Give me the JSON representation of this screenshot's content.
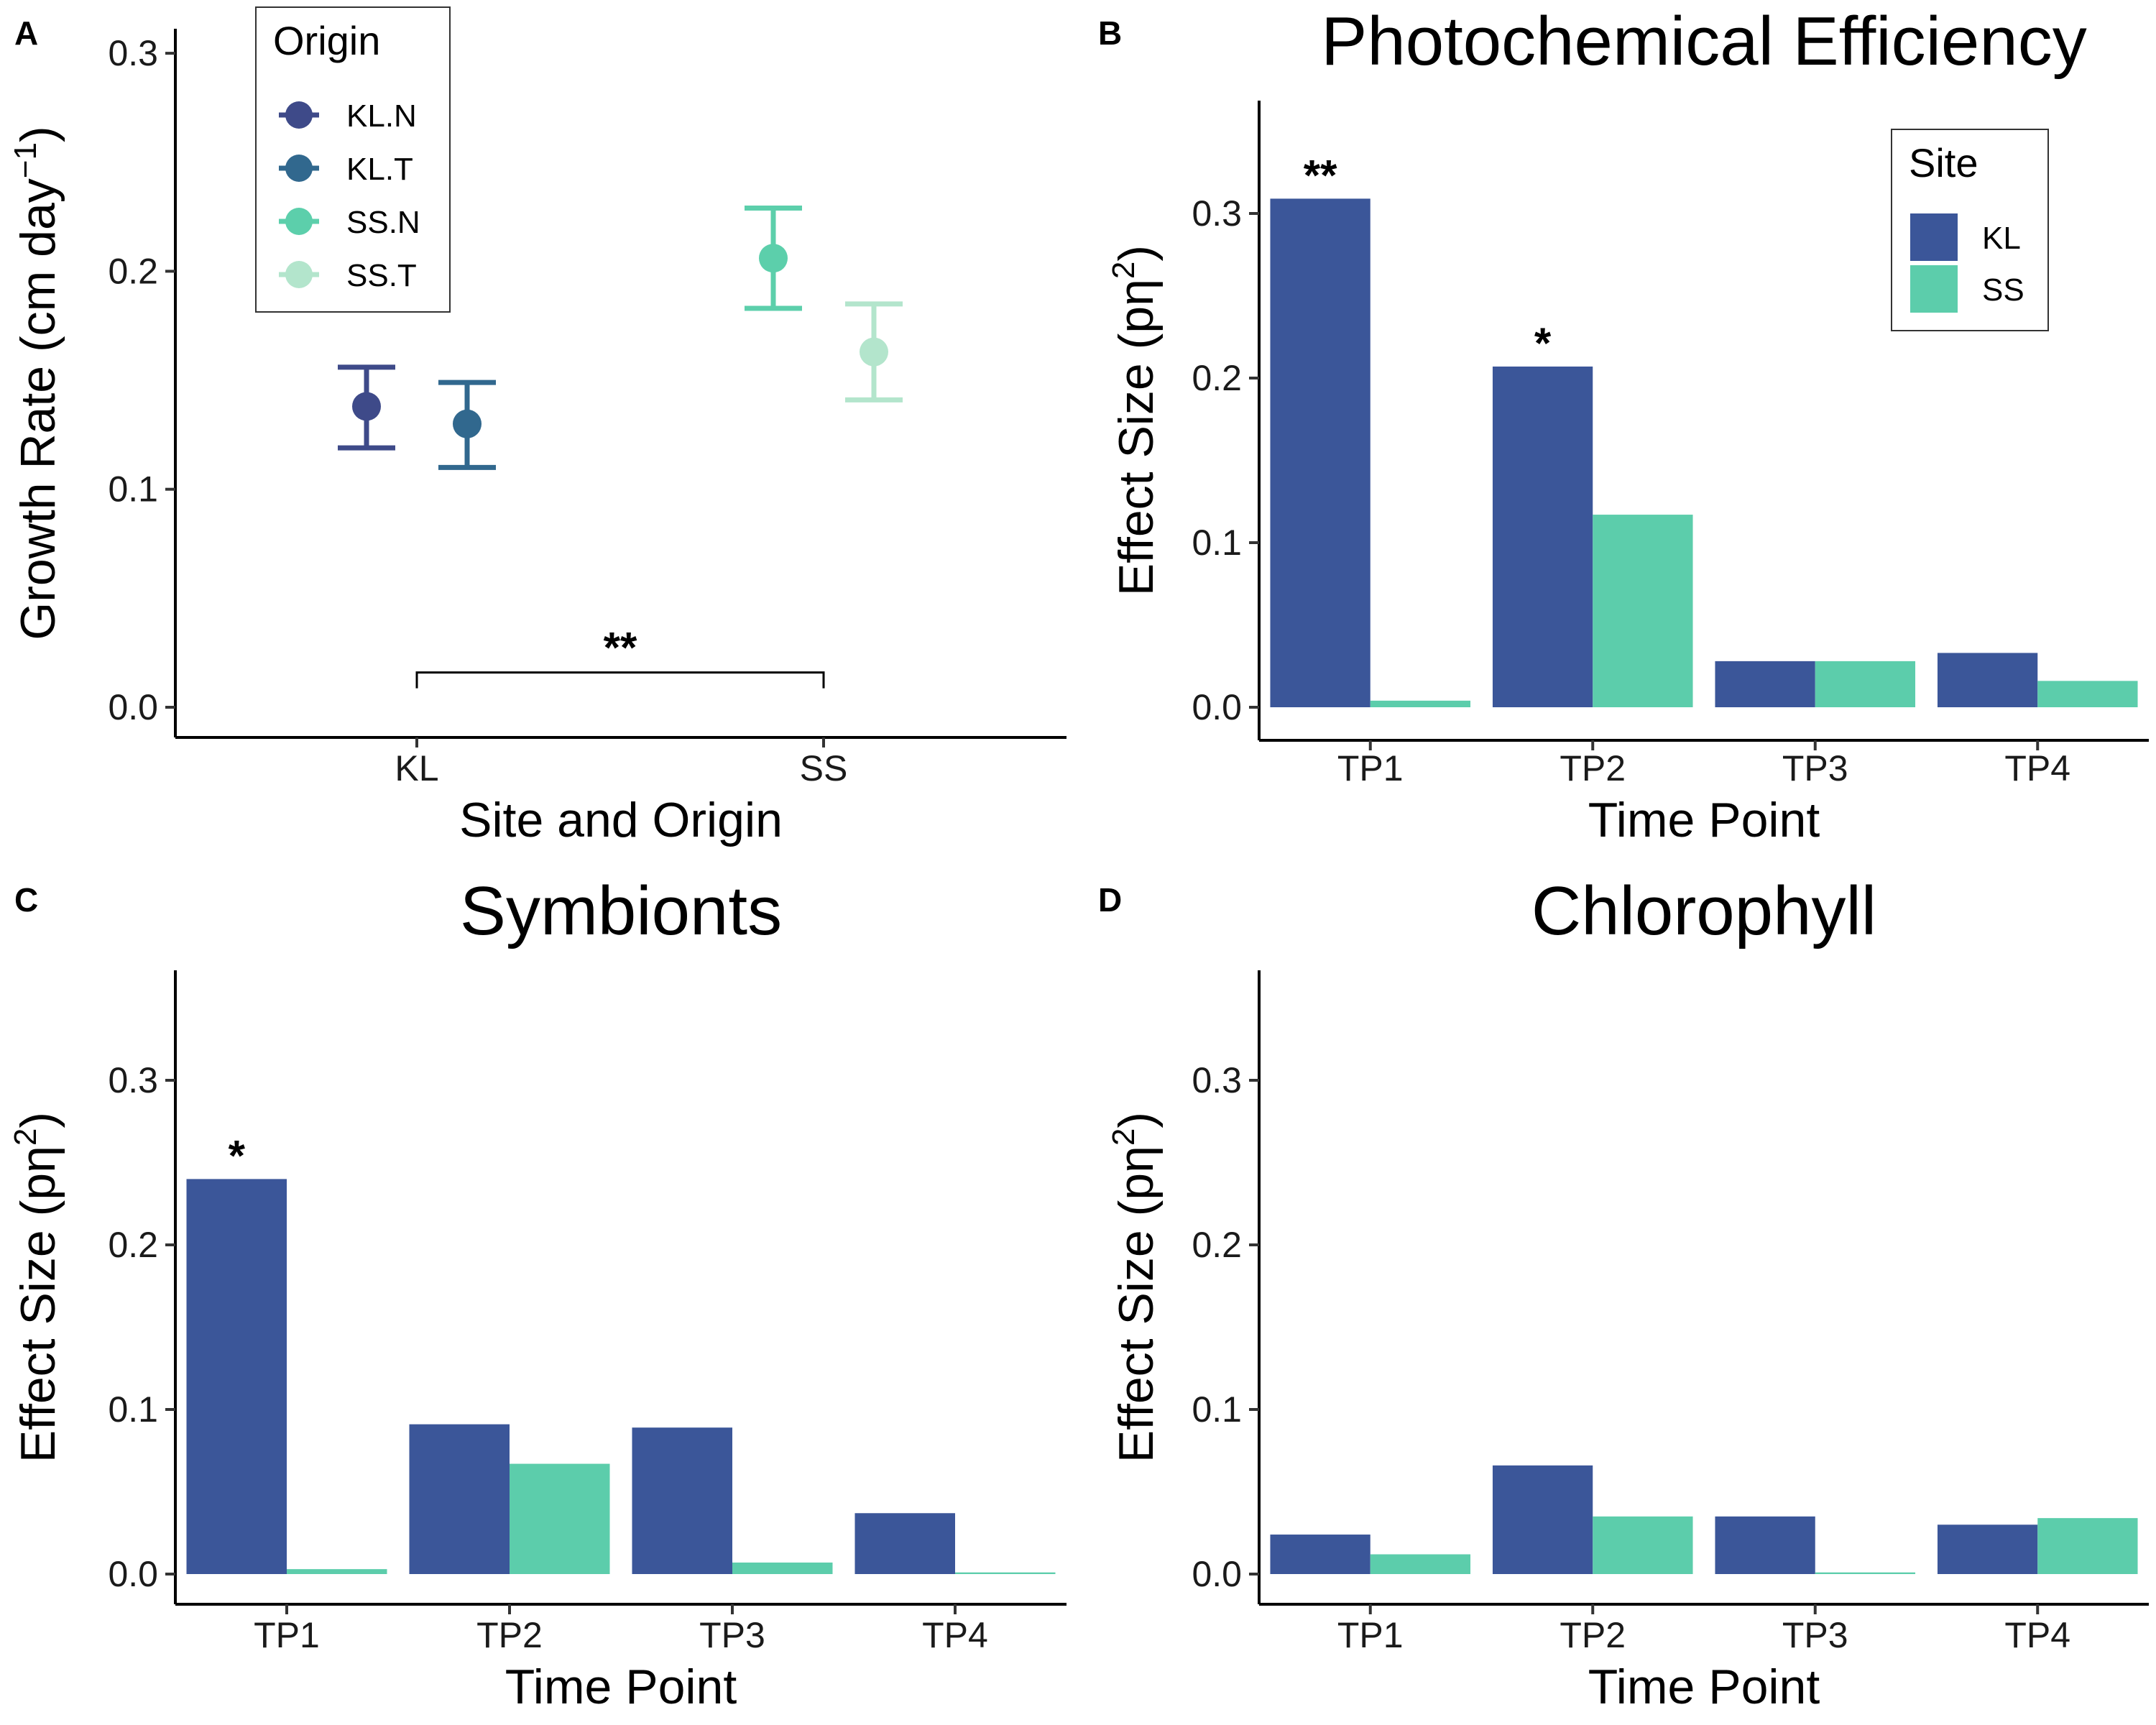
{
  "chart_data": [
    {
      "panel": "A",
      "type": "scatter",
      "title": "",
      "xlabel": "Site and Origin",
      "ylabel": "Growth Rate (cm day",
      "ylabel_sup": "−1",
      "ylabel_close": ")",
      "categories": [
        "KL",
        "SS"
      ],
      "ylim": [
        0,
        0.3
      ],
      "yticks": [
        "0.0",
        "0.1",
        "0.2",
        "0.3"
      ],
      "grid": false,
      "legend": {
        "title": "Origin",
        "position": "top-left"
      },
      "series": [
        {
          "name": "KL.N",
          "category": "KL",
          "mean": 0.138,
          "lower": 0.119,
          "upper": 0.156,
          "color": "#3e4a89"
        },
        {
          "name": "KL.T",
          "category": "KL",
          "mean": 0.13,
          "lower": 0.11,
          "upper": 0.149,
          "color": "#31688e"
        },
        {
          "name": "SS.N",
          "category": "SS",
          "mean": 0.206,
          "lower": 0.183,
          "upper": 0.229,
          "color": "#5ccfab"
        },
        {
          "name": "SS.T",
          "category": "SS",
          "mean": 0.163,
          "lower": 0.141,
          "upper": 0.185,
          "color": "#b3e5cc"
        }
      ],
      "annotations": [
        {
          "text": "**",
          "from": "KL",
          "to": "SS",
          "y": 0.01
        }
      ]
    },
    {
      "panel": "B",
      "type": "bar",
      "title": "Photochemical Efficiency",
      "xlabel": "Time Point",
      "ylabel": "Effect Size (pη",
      "ylabel_sup": "2",
      "ylabel_close": ")",
      "categories": [
        "TP1",
        "TP2",
        "TP3",
        "TP4"
      ],
      "ylim": [
        0,
        0.36
      ],
      "yticks": [
        "0.0",
        "0.1",
        "0.2",
        "0.3"
      ],
      "grid": false,
      "legend": {
        "title": "Site",
        "position": "top-right"
      },
      "series": [
        {
          "name": "KL",
          "color": "#3b5699",
          "values": [
            0.309,
            0.207,
            0.028,
            0.033
          ]
        },
        {
          "name": "SS",
          "color": "#5ccdab",
          "values": [
            0.004,
            0.117,
            0.028,
            0.016
          ]
        }
      ],
      "annotations": [
        {
          "text": "**",
          "category": "TP1",
          "series": "KL"
        },
        {
          "text": "*",
          "category": "TP2",
          "series": "KL"
        }
      ]
    },
    {
      "panel": "C",
      "type": "bar",
      "title": "Symbionts",
      "xlabel": "Time Point",
      "ylabel": "Effect Size (pη",
      "ylabel_sup": "2",
      "ylabel_close": ")",
      "categories": [
        "TP1",
        "TP2",
        "TP3",
        "TP4"
      ],
      "ylim": [
        0,
        0.36
      ],
      "yticks": [
        "0.0",
        "0.1",
        "0.2",
        "0.3"
      ],
      "grid": false,
      "series": [
        {
          "name": "KL",
          "color": "#3b5699",
          "values": [
            0.24,
            0.091,
            0.089,
            0.037
          ]
        },
        {
          "name": "SS",
          "color": "#5ccdab",
          "values": [
            0.003,
            0.067,
            0.007,
            0.001
          ]
        }
      ],
      "annotations": [
        {
          "text": "*",
          "category": "TP1",
          "series": "KL"
        }
      ]
    },
    {
      "panel": "D",
      "type": "bar",
      "title": "Chlorophyll",
      "xlabel": "Time Point",
      "ylabel": "Effect Size (pη",
      "ylabel_sup": "2",
      "ylabel_close": ")",
      "categories": [
        "TP1",
        "TP2",
        "TP3",
        "TP4"
      ],
      "ylim": [
        0,
        0.36
      ],
      "yticks": [
        "0.0",
        "0.1",
        "0.2",
        "0.3"
      ],
      "grid": false,
      "series": [
        {
          "name": "KL",
          "color": "#3b5699",
          "values": [
            0.024,
            0.066,
            0.035,
            0.03
          ]
        },
        {
          "name": "SS",
          "color": "#5ccdab",
          "values": [
            0.012,
            0.035,
            0.001,
            0.034
          ]
        }
      ],
      "annotations": []
    }
  ]
}
